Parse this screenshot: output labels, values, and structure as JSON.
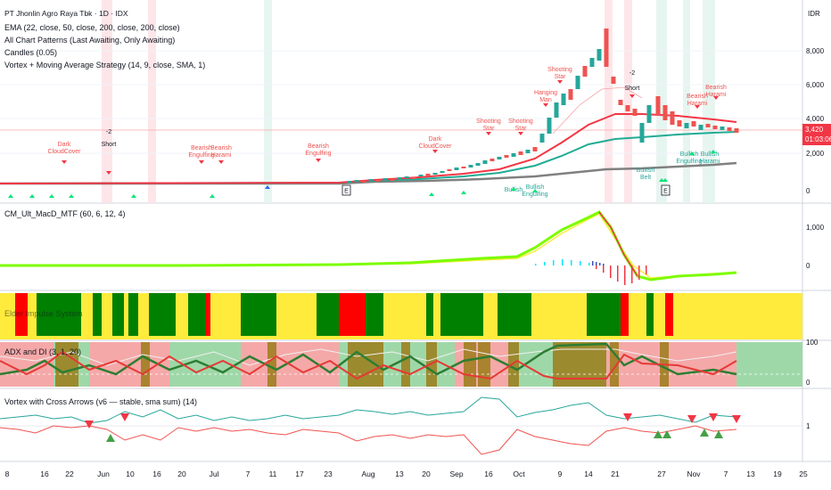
{
  "legends": {
    "symbol": "PT Jhonlin Agro Raya Tbk · 1D · IDX",
    "ema": "EMA (22, close, 50, close, 200, close, 200, close)",
    "patterns": "All Chart Patterns (Last Awaiting, Only Awaiting)",
    "candles": "Candles (0.05)",
    "vortex_ma": "Vortex + Moving Average Strategy (14, 9, close, SMA, 1)",
    "macd": "CM_Ult_MacD_MTF (60, 6, 12, 4)",
    "elder": "Elder Impulse System",
    "adx": "ADX and DI (3, 1, 20)",
    "vortex_arrows": "Vortex with Cross Arrows (v6 — stable, sma sum) (14)"
  },
  "currency": "IDR",
  "price_axis": [
    "8,000",
    "6,000",
    "4,000",
    "2,000",
    "0"
  ],
  "last_price": "3,420",
  "countdown": "01:03:06",
  "macd_axis": [
    "1,000",
    "0"
  ],
  "adx_axis": [
    "100",
    "0"
  ],
  "vortex_axis": [
    "1"
  ],
  "dates": [
    "8",
    "16",
    "22",
    "Jun",
    "10",
    "16",
    "20",
    "Jul",
    "7",
    "11",
    "17",
    "23",
    "Aug",
    "13",
    "20",
    "Sep",
    "16",
    "Oct",
    "9",
    "14",
    "21",
    "27",
    "Nov",
    "7",
    "13",
    "19",
    "25"
  ],
  "annotations": {
    "dark_cloud": [
      "Dark",
      "CloudCover"
    ],
    "short": [
      "-2",
      "Short"
    ],
    "bearish_engulfing": [
      "Bearish",
      "Engulfing"
    ],
    "bearish_harami": [
      "Bearish",
      "Harami"
    ],
    "shooting_star": [
      "Shooting",
      "Star"
    ],
    "hanging_man": [
      "Hanging",
      "Man"
    ],
    "bullish_engulfing": [
      "Bullish",
      "Engulfing"
    ],
    "bullish_harami": [
      "Bullish",
      "Harami"
    ],
    "bullish_belt": [
      "Bullish",
      "Belt"
    ],
    "earnings": "E"
  },
  "colors": {
    "ema_fast": "#f23645",
    "ema_mid": "#22ab94",
    "ema_slow": "#808080",
    "bull": "#26a69a",
    "bear": "#ef5350",
    "elder_green": "#008000",
    "elder_red": "#ff0000",
    "elder_yellow": "#ffeb3b"
  }
}
